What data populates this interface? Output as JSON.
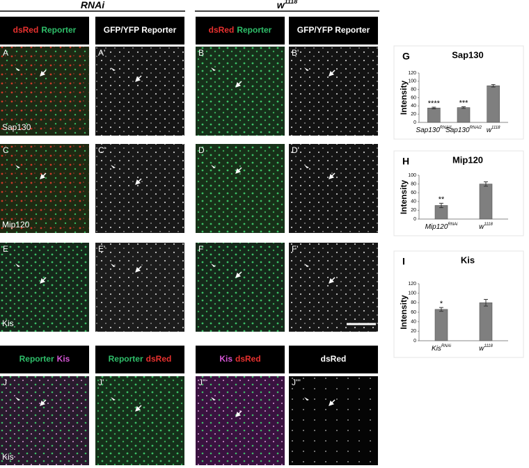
{
  "figure": {
    "group_headers": [
      {
        "text": "RNAi"
      },
      {
        "text": "w",
        "sup": "1118"
      }
    ],
    "channel_headers": [
      [
        {
          "text": "dsRed",
          "color": "#e8312f"
        },
        {
          "text": "Reporter",
          "color": "#2fbf6a"
        }
      ],
      [
        {
          "text": "GFP/YFP Reporter",
          "color": "#ffffff"
        }
      ],
      [
        {
          "text": "dsRed",
          "color": "#e8312f"
        },
        {
          "text": "Reporter",
          "color": "#2fbf6a"
        }
      ],
      [
        {
          "text": "GFP/YFP Reporter",
          "color": "#ffffff"
        }
      ],
      [
        {
          "text": "Reporter",
          "color": "#2fbf6a"
        },
        {
          "text": "Kis",
          "color": "#d455d4"
        }
      ],
      [
        {
          "text": "Reporter",
          "color": "#2fbf6a"
        },
        {
          "text": "dsRed",
          "color": "#e8312f"
        }
      ],
      [
        {
          "text": "Kis",
          "color": "#d455d4"
        },
        {
          "text": "dsRed",
          "color": "#e8312f"
        }
      ],
      [
        {
          "text": "dsRed",
          "color": "#ffffff"
        }
      ]
    ],
    "panels": [
      {
        "label": "A",
        "row_label": "Sap130"
      },
      {
        "label": "A'"
      },
      {
        "label": "B"
      },
      {
        "label": "B'"
      },
      {
        "label": "C",
        "row_label": "Mip120"
      },
      {
        "label": "C'"
      },
      {
        "label": "D"
      },
      {
        "label": "D'"
      },
      {
        "label": "E",
        "row_label": "Kis"
      },
      {
        "label": "E'"
      },
      {
        "label": "F"
      },
      {
        "label": "F'"
      },
      {
        "label": "J",
        "row_label": "Kis"
      },
      {
        "label": "J'"
      },
      {
        "label": "J''"
      },
      {
        "label": "J'''"
      }
    ]
  },
  "chart_data": [
    {
      "panel": "G",
      "type": "bar",
      "title": "Sap130",
      "y_label": "Intensity",
      "categories": [
        "Sap130",
        "Sap130",
        "w"
      ],
      "category_superscripts": [
        "RNAi1",
        "RNAi2",
        "1118"
      ],
      "values": [
        35,
        36,
        89
      ],
      "errors": [
        2,
        2,
        3
      ],
      "annotations": [
        "****",
        "***",
        null
      ],
      "color": "#7f7f7f",
      "ylim": [
        0,
        120
      ],
      "yticks": [
        0,
        20,
        40,
        60,
        80,
        100,
        120
      ]
    },
    {
      "panel": "H",
      "type": "bar",
      "title": "Mip120",
      "y_label": "Intensity",
      "categories": [
        "Mip120",
        "w"
      ],
      "category_superscripts": [
        "RNAi",
        "1118"
      ],
      "values": [
        31,
        80
      ],
      "errors": [
        5,
        5
      ],
      "annotations": [
        "**",
        null
      ],
      "color": "#7f7f7f",
      "ylim": [
        0,
        100
      ],
      "yticks": [
        0,
        20,
        40,
        60,
        80,
        100
      ]
    },
    {
      "panel": "I",
      "type": "bar",
      "title": "Kis",
      "y_label": "Intensity",
      "categories": [
        "Kis",
        "w"
      ],
      "category_superscripts": [
        "RNAi",
        "1118"
      ],
      "values": [
        66,
        80
      ],
      "errors": [
        4,
        7
      ],
      "annotations": [
        "*",
        null
      ],
      "color": "#7f7f7f",
      "ylim": [
        0,
        120
      ],
      "yticks": [
        0,
        20,
        40,
        60,
        80,
        100,
        120
      ]
    }
  ]
}
